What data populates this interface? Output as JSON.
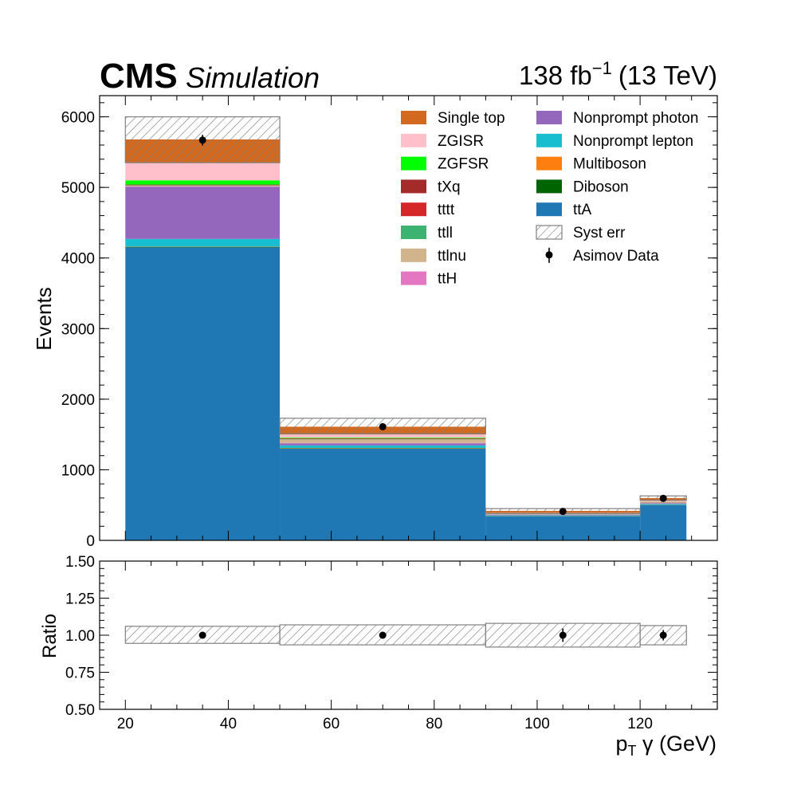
{
  "header": {
    "experiment": "CMS",
    "status": "Simulation",
    "lumi_main": "138 fb",
    "lumi_exp": "−1",
    "lumi_energy": "(13 TeV)"
  },
  "colors": {
    "single_top": "#d2691e",
    "zgisr": "#ffc0cb",
    "zgfsr": "#00ff00",
    "txq": "#a52a2a",
    "tttt": "#d62728",
    "ttll": "#3cb371",
    "ttlnu": "#d2b48c",
    "tth": "#e377c2",
    "nonprompt_photon": "#9467bd",
    "nonprompt_lepton": "#17becf",
    "multiboson": "#ff7f0e",
    "diboson": "#006400",
    "tta": "#1f77b4",
    "syst": "#808080",
    "data": "#000000"
  },
  "chart_data": [
    {
      "type": "bar",
      "stacked": true,
      "bin_edges": [
        20,
        50,
        90,
        120,
        129
      ],
      "xlim": [
        15,
        135
      ],
      "ylim": [
        0,
        6300
      ],
      "ylabel": "Events",
      "yticks": [
        0,
        1000,
        2000,
        3000,
        4000,
        5000,
        6000
      ],
      "stack_order": [
        "ttA",
        "Diboson",
        "Multiboson",
        "Nonprompt lepton",
        "Nonprompt photon",
        "ttH",
        "ttlnu",
        "ttll",
        "tttt",
        "tXq",
        "ZGFSR",
        "ZGISR",
        "Single top"
      ],
      "series": [
        {
          "name": "ttA",
          "key": "tta",
          "values": [
            4150,
            1300,
            340,
            500
          ]
        },
        {
          "name": "Diboson",
          "key": "diboson",
          "values": [
            5,
            5,
            2,
            2
          ]
        },
        {
          "name": "Multiboson",
          "key": "multiboson",
          "values": [
            5,
            5,
            2,
            2
          ]
        },
        {
          "name": "Nonprompt lepton",
          "key": "nonprompt_lepton",
          "values": [
            110,
            35,
            10,
            12
          ]
        },
        {
          "name": "Nonprompt photon",
          "key": "nonprompt_photon",
          "values": [
            740,
            30,
            10,
            10
          ]
        },
        {
          "name": "ttH",
          "key": "tth",
          "values": [
            5,
            5,
            2,
            2
          ]
        },
        {
          "name": "ttlnu",
          "key": "ttlnu",
          "values": [
            10,
            50,
            5,
            8
          ]
        },
        {
          "name": "ttll",
          "key": "ttll",
          "values": [
            5,
            5,
            2,
            2
          ]
        },
        {
          "name": "tttt",
          "key": "tttt",
          "values": [
            5,
            5,
            2,
            2
          ]
        },
        {
          "name": "tXq",
          "key": "txq",
          "values": [
            5,
            5,
            2,
            2
          ]
        },
        {
          "name": "ZGFSR",
          "key": "zgfsr",
          "values": [
            60,
            10,
            3,
            3
          ]
        },
        {
          "name": "ZGISR",
          "key": "zgisr",
          "values": [
            245,
            45,
            10,
            15
          ]
        },
        {
          "name": "Single top",
          "key": "single_top",
          "values": [
            335,
            110,
            28,
            40
          ]
        }
      ],
      "syst_err": {
        "name": "Syst err",
        "up": [
          6000,
          1730,
          450,
          630
        ],
        "down": [
          5350,
          1510,
          380,
          570
        ]
      },
      "data": {
        "name": "Asimov Data",
        "x": [
          35,
          70,
          105,
          124.5
        ],
        "y": [
          5670,
          1610,
          410,
          595
        ],
        "yerr": [
          75,
          40,
          20,
          24
        ]
      },
      "legend": {
        "placement": "top-right",
        "columns": [
          [
            "Single top",
            "ZGISR",
            "ZGFSR",
            "tXq",
            "tttt",
            "ttll",
            "ttlnu",
            "ttH"
          ],
          [
            "Nonprompt photon",
            "Nonprompt lepton",
            "Multiboson",
            "Diboson",
            "ttA",
            "Syst err",
            "Asimov Data"
          ]
        ]
      }
    },
    {
      "type": "scatter",
      "bin_edges": [
        20,
        50,
        90,
        120,
        129
      ],
      "xlim": [
        15,
        135
      ],
      "ylim": [
        0.5,
        1.5
      ],
      "ylabel": "Ratio",
      "xlabel_main": "p",
      "xlabel_sub": "T",
      "xlabel_rest": " γ (GeV)",
      "xticks": [
        20,
        40,
        60,
        80,
        100,
        120
      ],
      "yticks": [
        "0.50",
        "0.75",
        "1.00",
        "1.25",
        "1.50"
      ],
      "ratio_band": {
        "up": [
          1.06,
          1.07,
          1.08,
          1.065
        ],
        "down": [
          0.945,
          0.935,
          0.92,
          0.935
        ]
      },
      "points": {
        "x": [
          35,
          70,
          105,
          124.5
        ],
        "y": [
          1.0,
          1.0,
          1.0,
          1.0
        ],
        "yerr": [
          0.013,
          0.022,
          0.045,
          0.035
        ]
      }
    }
  ]
}
